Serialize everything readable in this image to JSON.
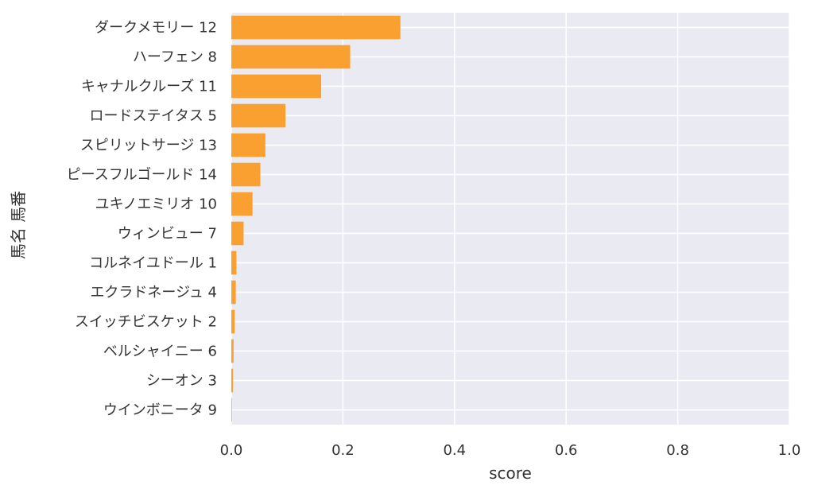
{
  "chart_data": {
    "type": "bar",
    "orientation": "horizontal",
    "xlabel": "score",
    "ylabel": "馬名 馬番",
    "xlim": [
      0.0,
      1.0
    ],
    "xticks": [
      "0.0",
      "0.2",
      "0.4",
      "0.6",
      "0.8",
      "1.0"
    ],
    "grid": true,
    "categories": [
      "ダークメモリー 12",
      "ハーフェン 8",
      "キャナルクルーズ 11",
      "ロードステイタス 5",
      "スピリットサージ 13",
      "ピースフルゴールド 14",
      "ユキノエミリオ 10",
      "ウィンビュー 7",
      "コルネイユドール 1",
      "エクラドネージュ 4",
      "スイッチビスケット 2",
      "ベルシャイニー 6",
      "シーオン 3",
      "ウインボニータ 9"
    ],
    "values": [
      0.303,
      0.213,
      0.161,
      0.097,
      0.061,
      0.052,
      0.038,
      0.022,
      0.009,
      0.008,
      0.006,
      0.004,
      0.003,
      0.001
    ],
    "colors": {
      "bar": "#F9A030",
      "plot_background": "#EAEAF2",
      "grid": "#FFFFFF",
      "text": "#333333"
    }
  }
}
